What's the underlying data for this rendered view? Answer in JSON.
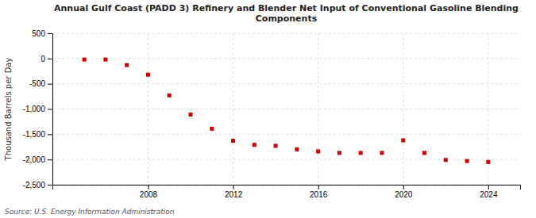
{
  "chart_data": {
    "type": "scatter",
    "title": "Annual Gulf Coast (PADD 3) Refinery and Blender Net Input of Conventional Gasoline Blending\nComponents",
    "ylabel": "Thousand Barrels per Day",
    "source": "Source: U.S. Energy Information Administration",
    "x": [
      2005,
      2006,
      2007,
      2008,
      2009,
      2010,
      2011,
      2012,
      2013,
      2014,
      2015,
      2016,
      2017,
      2018,
      2019,
      2020,
      2021,
      2022,
      2023,
      2024
    ],
    "values": [
      -20,
      -20,
      -130,
      -320,
      -730,
      -1110,
      -1390,
      -1630,
      -1710,
      -1730,
      -1800,
      -1840,
      -1870,
      -1870,
      -1870,
      -1620,
      -1870,
      -2010,
      -2030,
      -2050
    ],
    "color": "#cc0000",
    "marker": "square",
    "xlim": [
      2003.5,
      2025.5
    ],
    "xticks": [
      2008,
      2012,
      2016,
      2020,
      2024
    ],
    "ylim": [
      -2500,
      500
    ],
    "yticks": [
      500,
      0,
      {
        "value": -500,
        "label": "-500"
      },
      {
        "value": -1000,
        "label": "-1,000"
      },
      {
        "value": -1500,
        "label": "-1,500"
      },
      {
        "value": -2000,
        "label": "-2,000"
      },
      {
        "value": -2500,
        "label": "-2,500"
      }
    ],
    "grid": true
  }
}
